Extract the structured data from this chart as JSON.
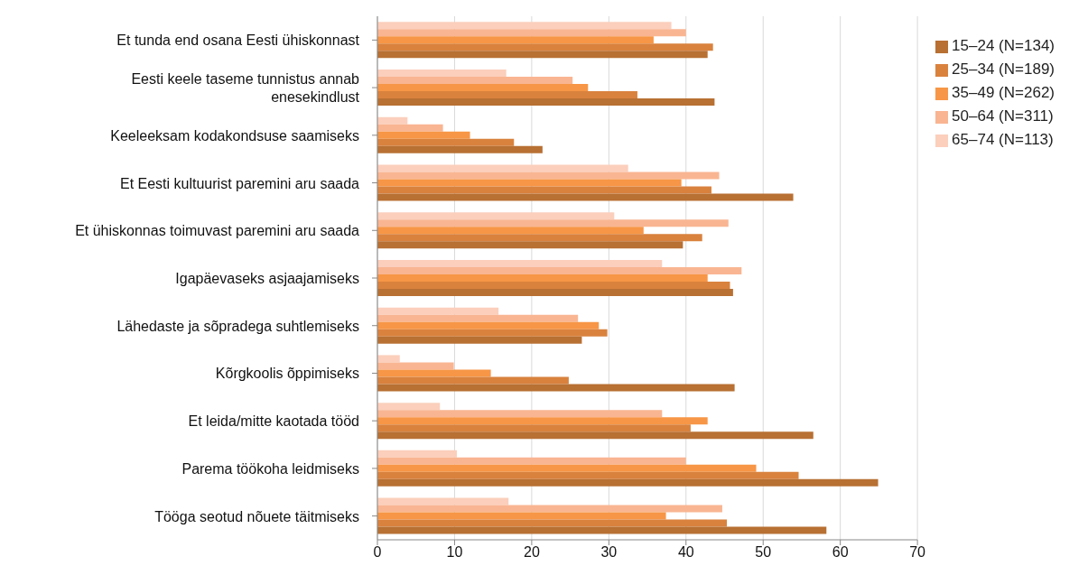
{
  "chart_data": {
    "type": "bar",
    "orientation": "horizontal",
    "categories": [
      "Et tunda end osana Eesti ühiskonnast",
      "Eesti keele taseme tunnistus annab enesekindlust",
      "Keeleeksam kodakondsuse saamiseks",
      "Et Eesti kultuurist paremini aru saada",
      "Et ühiskonnas toimuvast paremini aru saada",
      "Igapäevaseks asjaajamiseks",
      "Lähedaste ja sõpradega suhtlemiseks",
      "Kõrgkoolis õppimiseks",
      "Et leida/mitte kaotada tööd",
      "Parema töökoha leidmiseks",
      "Tööga seotud nõuete täitmiseks"
    ],
    "series": [
      {
        "name": "65–74 (N=113)",
        "color": "#fbcfbc",
        "values": [
          38.1,
          16.7,
          3.9,
          32.5,
          30.7,
          36.9,
          15.7,
          2.9,
          8.1,
          10.3,
          17.0
        ]
      },
      {
        "name": "50–64 (N=311)",
        "color": "#f9b592",
        "values": [
          40.0,
          25.3,
          8.5,
          44.3,
          45.5,
          47.2,
          26.0,
          9.9,
          36.9,
          40.0,
          44.7
        ]
      },
      {
        "name": "35–49 (N=262)",
        "color": "#f79646",
        "values": [
          35.8,
          27.3,
          12.0,
          39.4,
          34.5,
          42.8,
          28.7,
          14.7,
          42.8,
          49.1,
          37.4
        ]
      },
      {
        "name": "25–34 (N=189)",
        "color": "#d9823e",
        "values": [
          43.5,
          33.7,
          17.7,
          43.3,
          42.1,
          45.7,
          29.8,
          24.8,
          40.6,
          54.6,
          45.3
        ]
      },
      {
        "name": "15–24 (N=134)",
        "color": "#b87033",
        "values": [
          42.8,
          43.7,
          21.4,
          53.9,
          39.6,
          46.1,
          26.5,
          46.3,
          56.5,
          64.9,
          58.2
        ]
      }
    ],
    "xlim": [
      0,
      70
    ],
    "xticks": [
      0,
      10,
      20,
      30,
      40,
      50,
      60,
      70
    ],
    "grid": "x",
    "legend": "right"
  }
}
